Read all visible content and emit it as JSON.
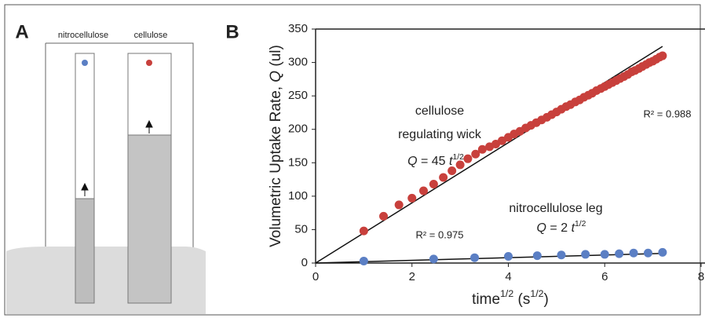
{
  "panels": {
    "a_label": "A",
    "b_label": "B",
    "strip_labels": [
      "nitrocellulose",
      "cellulose"
    ]
  },
  "chart_data": {
    "type": "scatter",
    "xlabel_parts": [
      "time",
      "1/2",
      " (s",
      "1/2",
      ")"
    ],
    "ylabel_parts": [
      "Volumetric Uptake Rate, ",
      "Q",
      " (ul)"
    ],
    "xlim": [
      0,
      8
    ],
    "xticks": [
      0,
      2,
      4,
      6,
      8
    ],
    "ylim": [
      0,
      350
    ],
    "yticks": [
      0,
      50,
      100,
      150,
      200,
      250,
      300,
      350
    ],
    "series": [
      {
        "color": "#c8403c",
        "x": [
          1,
          1.41,
          1.73,
          2,
          2.24,
          2.45,
          2.65,
          2.83,
          3,
          3.16,
          3.32,
          3.46,
          3.61,
          3.74,
          3.87,
          4,
          4.12,
          4.24,
          4.36,
          4.47,
          4.58,
          4.69,
          4.8,
          4.9,
          5,
          5.1,
          5.2,
          5.29,
          5.39,
          5.48,
          5.57,
          5.66,
          5.74,
          5.83,
          5.92,
          6,
          6.08,
          6.16,
          6.24,
          6.32,
          6.4,
          6.48,
          6.56,
          6.63,
          6.71,
          6.78,
          6.86,
          6.93,
          7,
          7.07,
          7.14,
          7.2
        ],
        "values": [
          48,
          70,
          87,
          97,
          108,
          118,
          128,
          138,
          147,
          156,
          163,
          170,
          174,
          178,
          183,
          188,
          193,
          197,
          202,
          206,
          210,
          214,
          218,
          222,
          226,
          230,
          234,
          237,
          241,
          244,
          248,
          251,
          254,
          258,
          261,
          264,
          267,
          270,
          273,
          276,
          279,
          282,
          286,
          288,
          291,
          294,
          297,
          300,
          302,
          305,
          308,
          310
        ]
      },
      {
        "color": "#5b7fc4",
        "x": [
          1,
          2.45,
          3.3,
          4,
          4.6,
          5.1,
          5.6,
          6,
          6.3,
          6.6,
          6.9,
          7.2
        ],
        "values": [
          3,
          6,
          8,
          10,
          11,
          12,
          13,
          13,
          14,
          15,
          15,
          16
        ]
      }
    ],
    "fit_lines": [
      {
        "x": [
          0,
          7.2
        ],
        "values": [
          0,
          324
        ]
      },
      {
        "x": [
          0,
          7.2
        ],
        "values": [
          0,
          14.4
        ]
      }
    ],
    "annotations": {
      "cellulose_1": "cellulose",
      "cellulose_2": "regulating wick",
      "cellulose_eq": [
        "Q",
        " = 45 ",
        "t",
        "1/2"
      ],
      "cellulose_r2": "R² = 0.988",
      "nitro_1": "nitrocellulose leg",
      "nitro_eq": [
        "Q",
        " = 2 ",
        "t",
        "1/2"
      ],
      "nitro_r2": "R² = 0.975"
    }
  }
}
